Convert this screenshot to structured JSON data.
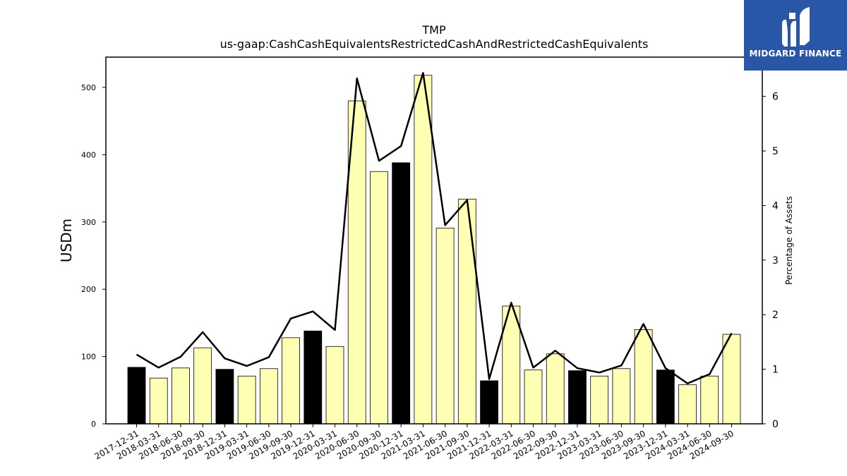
{
  "chart_data": {
    "type": "bar",
    "title": "TMP",
    "subtitle": "us-gaap:CashCashEquivalentsRestrictedCashAndRestrictedCashEquivalents",
    "ylabel": "USDm",
    "y2label": "Percentage of Assets",
    "ylim": [
      0,
      545
    ],
    "y2lim": [
      0,
      6.72
    ],
    "yticks": [
      0,
      100,
      200,
      300,
      400,
      500
    ],
    "y2ticks": [
      0,
      1,
      2,
      3,
      4,
      5,
      6
    ],
    "grid": false,
    "categories": [
      "2017-12-31",
      "2018-03-31",
      "2018-06-30",
      "2018-09-30",
      "2018-12-31",
      "2019-03-31",
      "2019-06-30",
      "2019-09-30",
      "2019-12-31",
      "2020-03-31",
      "2020-06-30",
      "2020-09-30",
      "2020-12-31",
      "2021-03-31",
      "2021-06-30",
      "2021-09-30",
      "2021-12-31",
      "2022-03-31",
      "2022-06-30",
      "2022-09-30",
      "2022-12-31",
      "2023-03-31",
      "2023-06-30",
      "2023-09-30",
      "2023-12-31",
      "2024-03-31",
      "2024-06-30",
      "2024-09-30"
    ],
    "series": [
      {
        "kind": "bar",
        "values": [
          84,
          68,
          83,
          113,
          81,
          71,
          82,
          128,
          138,
          115,
          480,
          375,
          388,
          518,
          291,
          334,
          64,
          175,
          80,
          104,
          79,
          71,
          82,
          140,
          80,
          58,
          71,
          133
        ]
      },
      {
        "kind": "line",
        "axis": "right",
        "values": [
          1.27,
          1.03,
          1.23,
          1.68,
          1.2,
          1.06,
          1.22,
          1.93,
          2.06,
          1.72,
          6.33,
          4.82,
          5.09,
          6.43,
          3.64,
          4.1,
          0.82,
          2.22,
          1.03,
          1.34,
          1.02,
          0.94,
          1.07,
          1.83,
          1.02,
          0.74,
          0.91,
          1.66
        ]
      }
    ],
    "year_end_color": "#000000",
    "bar_color": "#ffffb4",
    "line_color": "#000000"
  },
  "logo": {
    "text": "MIDGARD FINANCE",
    "background": "#2a56a8"
  }
}
